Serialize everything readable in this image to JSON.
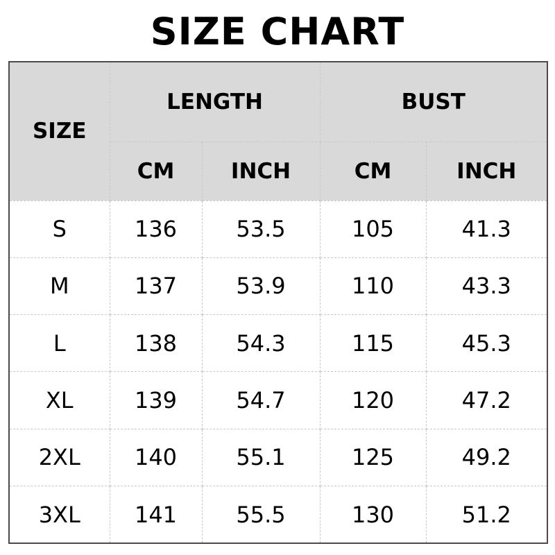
{
  "title": "SIZE CHART",
  "headers": {
    "size": "SIZE",
    "length": "LENGTH",
    "bust": "BUST",
    "units": [
      "CM",
      "INCH",
      "CM",
      "INCH"
    ]
  },
  "rows": [
    {
      "size": "S",
      "length_cm": "136",
      "length_inch": "53.5",
      "bust_cm": "105",
      "bust_inch": "41.3"
    },
    {
      "size": "M",
      "length_cm": "137",
      "length_inch": "53.9",
      "bust_cm": "110",
      "bust_inch": "43.3"
    },
    {
      "size": "L",
      "length_cm": "138",
      "length_inch": "54.3",
      "bust_cm": "115",
      "bust_inch": "45.3"
    },
    {
      "size": "XL",
      "length_cm": "139",
      "length_inch": "54.7",
      "bust_cm": "120",
      "bust_inch": "47.2"
    },
    {
      "size": "2XL",
      "length_cm": "140",
      "length_inch": "55.1",
      "bust_cm": "125",
      "bust_inch": "49.2"
    },
    {
      "size": "3XL",
      "length_cm": "141",
      "length_inch": "55.5",
      "bust_cm": "130",
      "bust_inch": "51.2"
    }
  ],
  "colors": {
    "header_bg": "#d9d9d9",
    "border": "#4a4a4a"
  }
}
